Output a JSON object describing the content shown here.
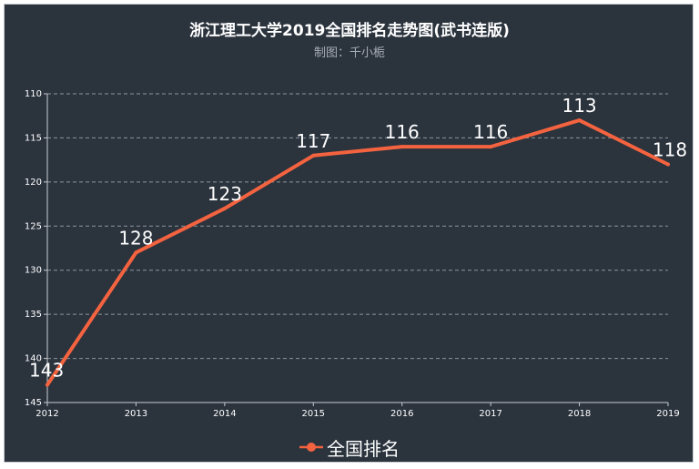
{
  "chart_data": {
    "type": "line",
    "title": "浙江理工大学2019全国排名走势图(武书连版)",
    "subtitle": "制图：千小栀",
    "x": [
      "2012",
      "2013",
      "2014",
      "2015",
      "2016",
      "2017",
      "2018",
      "2019"
    ],
    "series": [
      {
        "name": "全国排名",
        "values": [
          143,
          128,
          123,
          117,
          116,
          116,
          113,
          118
        ],
        "color": "#f4633f"
      }
    ],
    "y_axis": {
      "inverted": true,
      "min": 110,
      "max": 145,
      "ticks": [
        110,
        115,
        120,
        125,
        130,
        135,
        140,
        145
      ]
    },
    "grid": true,
    "legend_position": "bottom-center",
    "colors": {
      "background": "#2b333d",
      "axis": "#c8ccd2",
      "grid": "#8d949c",
      "text": "#ffffff"
    }
  }
}
